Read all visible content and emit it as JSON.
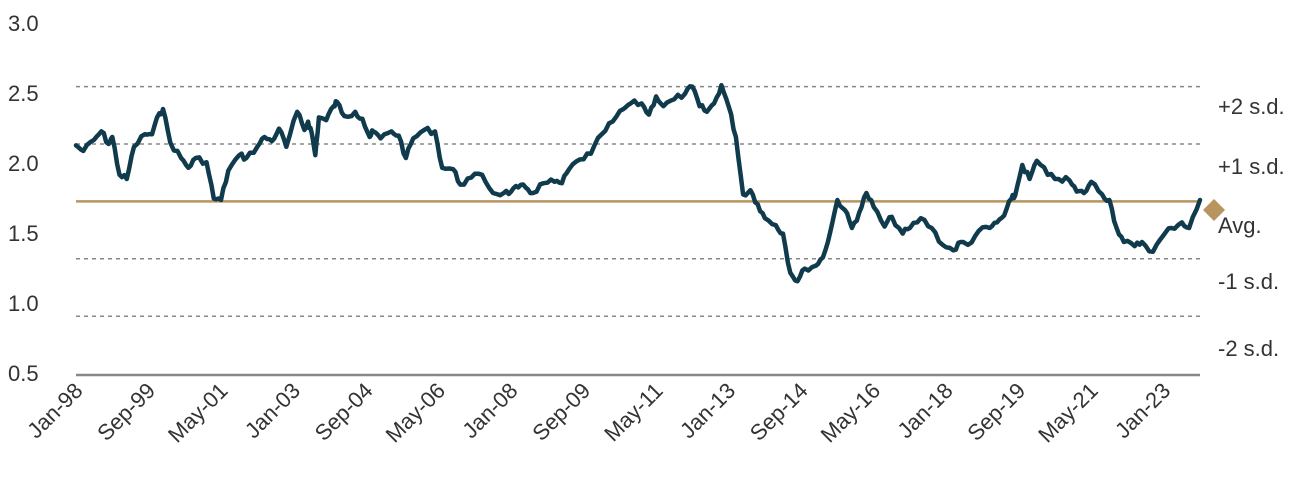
{
  "chart_data": {
    "type": "line",
    "title": "",
    "xlabel": "",
    "ylabel": "",
    "ylim": [
      0.5,
      3.0
    ],
    "x_range": [
      "1998-01",
      "2023-11"
    ],
    "y_ticks": [
      "0.5",
      "1.0",
      "1.5",
      "2.0",
      "2.5",
      "3.0"
    ],
    "x_ticks": [
      {
        "label": "Jan-98",
        "date": "1998-01"
      },
      {
        "label": "Sep-99",
        "date": "1999-09"
      },
      {
        "label": "May-01",
        "date": "2001-05"
      },
      {
        "label": "Jan-03",
        "date": "2003-01"
      },
      {
        "label": "Sep-04",
        "date": "2004-09"
      },
      {
        "label": "May-06",
        "date": "2006-05"
      },
      {
        "label": "Jan-08",
        "date": "2008-01"
      },
      {
        "label": "Sep-09",
        "date": "2009-09"
      },
      {
        "label": "May-11",
        "date": "2011-05"
      },
      {
        "label": "Jan-13",
        "date": "2013-01"
      },
      {
        "label": "Sep-14",
        "date": "2014-09"
      },
      {
        "label": "May-16",
        "date": "2016-05"
      },
      {
        "label": "Jan-18",
        "date": "2018-01"
      },
      {
        "label": "Sep-19",
        "date": "2019-09"
      },
      {
        "label": "May-21",
        "date": "2021-05"
      },
      {
        "label": "Jan-23",
        "date": "2023-01"
      }
    ],
    "reference_lines": [
      {
        "label": "+2 s.d.",
        "value": 2.56,
        "style": "dashed",
        "color": "#888888"
      },
      {
        "label": "+1 s.d.",
        "value": 2.15,
        "style": "dashed",
        "color": "#888888"
      },
      {
        "label": "Avg.",
        "value": 1.74,
        "style": "solid",
        "color": "#b8955f"
      },
      {
        "label": "-1 s.d.",
        "value": 1.33,
        "style": "dashed",
        "color": "#888888"
      },
      {
        "label": "-2 s.d.",
        "value": 0.92,
        "style": "dashed",
        "color": "#888888"
      }
    ],
    "series": [
      {
        "color": "#0f3b4d",
        "points": [
          [
            "1998-01",
            2.14
          ],
          [
            "1998-03",
            2.1
          ],
          [
            "1998-06",
            2.18
          ],
          [
            "1998-08",
            2.24
          ],
          [
            "1998-10",
            2.15
          ],
          [
            "1998-11",
            2.2
          ],
          [
            "1999-01",
            1.93
          ],
          [
            "1999-03",
            1.9
          ],
          [
            "1999-05",
            2.13
          ],
          [
            "1999-08",
            2.22
          ],
          [
            "1999-10",
            2.22
          ],
          [
            "1999-12",
            2.37
          ],
          [
            "2000-01",
            2.4
          ],
          [
            "2000-03",
            2.16
          ],
          [
            "2000-06",
            2.05
          ],
          [
            "2000-08",
            1.98
          ],
          [
            "2000-10",
            2.05
          ],
          [
            "2001-01",
            2.02
          ],
          [
            "2001-03",
            1.76
          ],
          [
            "2001-05",
            1.75
          ],
          [
            "2001-07",
            1.96
          ],
          [
            "2001-10",
            2.07
          ],
          [
            "2001-12",
            2.05
          ],
          [
            "2002-03",
            2.13
          ],
          [
            "2002-05",
            2.2
          ],
          [
            "2002-07",
            2.17
          ],
          [
            "2002-09",
            2.26
          ],
          [
            "2002-11",
            2.13
          ],
          [
            "2003-02",
            2.38
          ],
          [
            "2003-04",
            2.25
          ],
          [
            "2003-05",
            2.31
          ],
          [
            "2003-06",
            2.23
          ],
          [
            "2003-07",
            2.07
          ],
          [
            "2003-08",
            2.34
          ],
          [
            "2003-10",
            2.32
          ],
          [
            "2003-12",
            2.42
          ],
          [
            "2004-01",
            2.45
          ],
          [
            "2004-03",
            2.35
          ],
          [
            "2004-06",
            2.38
          ],
          [
            "2004-08",
            2.33
          ],
          [
            "2004-10",
            2.2
          ],
          [
            "2004-11",
            2.24
          ],
          [
            "2005-01",
            2.19
          ],
          [
            "2005-04",
            2.24
          ],
          [
            "2005-06",
            2.21
          ],
          [
            "2005-08",
            2.05
          ],
          [
            "2005-10",
            2.19
          ],
          [
            "2006-01",
            2.25
          ],
          [
            "2006-04",
            2.24
          ],
          [
            "2006-06",
            1.98
          ],
          [
            "2006-09",
            1.97
          ],
          [
            "2006-11",
            1.86
          ],
          [
            "2007-02",
            1.91
          ],
          [
            "2007-05",
            1.93
          ],
          [
            "2007-08",
            1.8
          ],
          [
            "2007-11",
            1.8
          ],
          [
            "2008-01",
            1.81
          ],
          [
            "2008-03",
            1.84
          ],
          [
            "2008-05",
            1.84
          ],
          [
            "2008-07",
            1.8
          ],
          [
            "2008-10",
            1.87
          ],
          [
            "2009-01",
            1.88
          ],
          [
            "2009-03",
            1.87
          ],
          [
            "2009-05",
            1.97
          ],
          [
            "2009-08",
            2.04
          ],
          [
            "2009-11",
            2.08
          ],
          [
            "2010-02",
            2.22
          ],
          [
            "2010-05",
            2.31
          ],
          [
            "2010-08",
            2.4
          ],
          [
            "2010-10",
            2.44
          ],
          [
            "2011-01",
            2.44
          ],
          [
            "2011-03",
            2.36
          ],
          [
            "2011-05",
            2.49
          ],
          [
            "2011-07",
            2.42
          ],
          [
            "2011-10",
            2.47
          ],
          [
            "2012-01",
            2.51
          ],
          [
            "2012-03",
            2.56
          ],
          [
            "2012-05",
            2.42
          ],
          [
            "2012-07",
            2.38
          ],
          [
            "2012-09",
            2.44
          ],
          [
            "2012-11",
            2.57
          ],
          [
            "2013-01",
            2.42
          ],
          [
            "2013-03",
            2.2
          ],
          [
            "2013-05",
            1.79
          ],
          [
            "2013-07",
            1.82
          ],
          [
            "2013-09",
            1.72
          ],
          [
            "2013-11",
            1.62
          ],
          [
            "2014-02",
            1.57
          ],
          [
            "2014-04",
            1.51
          ],
          [
            "2014-06",
            1.23
          ],
          [
            "2014-08",
            1.17
          ],
          [
            "2014-10",
            1.26
          ],
          [
            "2015-01",
            1.28
          ],
          [
            "2015-03",
            1.34
          ],
          [
            "2015-05",
            1.52
          ],
          [
            "2015-07",
            1.75
          ],
          [
            "2015-09",
            1.68
          ],
          [
            "2015-11",
            1.55
          ],
          [
            "2016-01",
            1.66
          ],
          [
            "2016-03",
            1.8
          ],
          [
            "2016-05",
            1.7
          ],
          [
            "2016-08",
            1.56
          ],
          [
            "2016-10",
            1.63
          ],
          [
            "2017-01",
            1.51
          ],
          [
            "2017-03",
            1.55
          ],
          [
            "2017-06",
            1.62
          ],
          [
            "2017-09",
            1.55
          ],
          [
            "2017-12",
            1.43
          ],
          [
            "2018-03",
            1.39
          ],
          [
            "2018-05",
            1.45
          ],
          [
            "2018-07",
            1.43
          ],
          [
            "2018-10",
            1.53
          ],
          [
            "2019-01",
            1.55
          ],
          [
            "2019-03",
            1.59
          ],
          [
            "2019-05",
            1.64
          ],
          [
            "2019-07",
            1.76
          ],
          [
            "2019-08",
            1.78
          ],
          [
            "2019-10",
            2.0
          ],
          [
            "2019-12",
            1.9
          ],
          [
            "2020-02",
            2.03
          ],
          [
            "2020-05",
            1.93
          ],
          [
            "2020-08",
            1.9
          ],
          [
            "2020-11",
            1.89
          ],
          [
            "2021-01",
            1.81
          ],
          [
            "2021-03",
            1.8
          ],
          [
            "2021-05",
            1.88
          ],
          [
            "2021-08",
            1.79
          ],
          [
            "2021-10",
            1.75
          ],
          [
            "2021-12",
            1.55
          ],
          [
            "2022-02",
            1.45
          ],
          [
            "2022-05",
            1.42
          ],
          [
            "2022-07",
            1.45
          ],
          [
            "2022-10",
            1.38
          ],
          [
            "2023-01",
            1.5
          ],
          [
            "2023-03",
            1.55
          ],
          [
            "2023-06",
            1.59
          ],
          [
            "2023-08",
            1.55
          ],
          [
            "2023-11",
            1.75
          ]
        ],
        "segment_note": ""
      }
    ]
  }
}
